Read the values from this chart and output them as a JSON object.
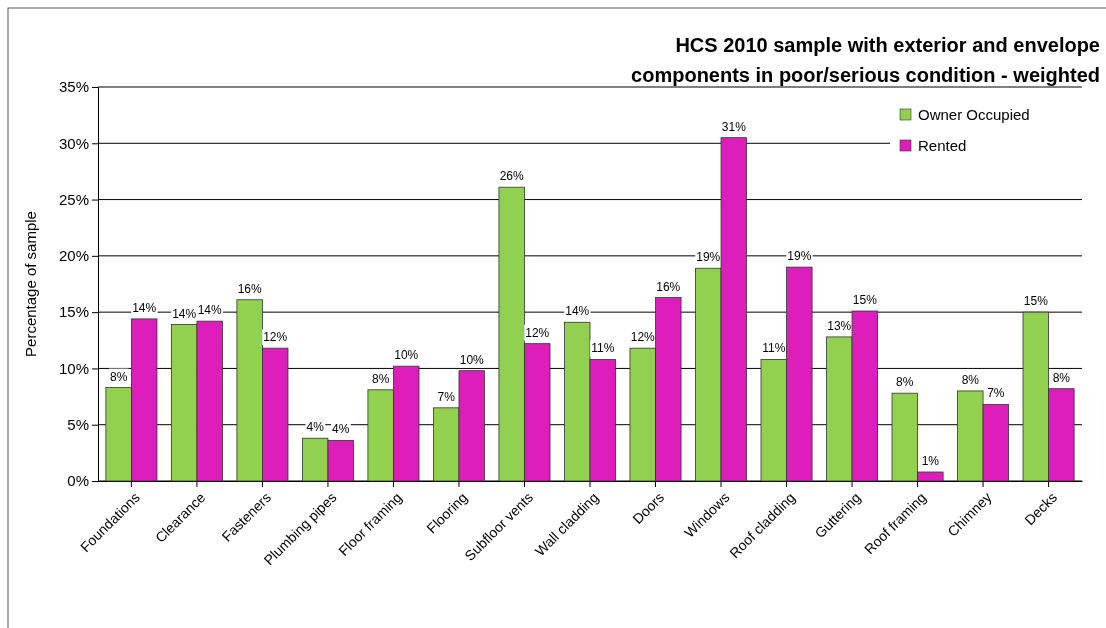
{
  "chart_data": {
    "type": "bar",
    "title": "HCS 2010 sample with exterior and envelope components in poor/serious condition - weighted",
    "ylabel": "Percentage of sample",
    "categories": [
      "Foundations",
      "Clearance",
      "Fasteners",
      "Plumbing pipes",
      "Floor framing",
      "Flooring",
      "Subfloor vents",
      "Wall cladding",
      "Doors",
      "Windows",
      "Roof cladding",
      "Guttering",
      "Roof framing",
      "Chimney",
      "Decks"
    ],
    "series": [
      {
        "name": "Owner Occupied",
        "color": "#92d050",
        "values": [
          8.3,
          13.9,
          16.1,
          3.8,
          8.1,
          6.5,
          26.1,
          14.1,
          11.8,
          18.9,
          10.8,
          12.8,
          7.8,
          8.0,
          15.0
        ],
        "value_labels": [
          "8%",
          "14%",
          "16%",
          "4%",
          "8%",
          "7%",
          "26%",
          "14%",
          "12%",
          "19%",
          "11%",
          "13%",
          "8%",
          "8%",
          "15%"
        ]
      },
      {
        "name": "Rented",
        "color": "#dd1eba",
        "values": [
          14.4,
          14.2,
          11.8,
          3.6,
          10.2,
          9.8,
          12.2,
          10.8,
          16.3,
          30.5,
          19.0,
          15.1,
          0.8,
          6.8,
          8.2
        ],
        "value_labels": [
          "14%",
          "14%",
          "12%",
          "4%",
          "10%",
          "10%",
          "12%",
          "11%",
          "16%",
          "31%",
          "19%",
          "15%",
          "1%",
          "7%",
          "8%"
        ]
      }
    ],
    "ylim": [
      0,
      35
    ],
    "yticks": [
      {
        "value": 0,
        "label": "0%"
      },
      {
        "value": 5,
        "label": "5%"
      },
      {
        "value": 10,
        "label": "10%"
      },
      {
        "value": 15,
        "label": "15%"
      },
      {
        "value": 20,
        "label": "20%"
      },
      {
        "value": 25,
        "label": "25%"
      },
      {
        "value": 30,
        "label": "30%"
      },
      {
        "value": 35,
        "label": "35%"
      }
    ],
    "grid": "y",
    "legend": "top right"
  }
}
